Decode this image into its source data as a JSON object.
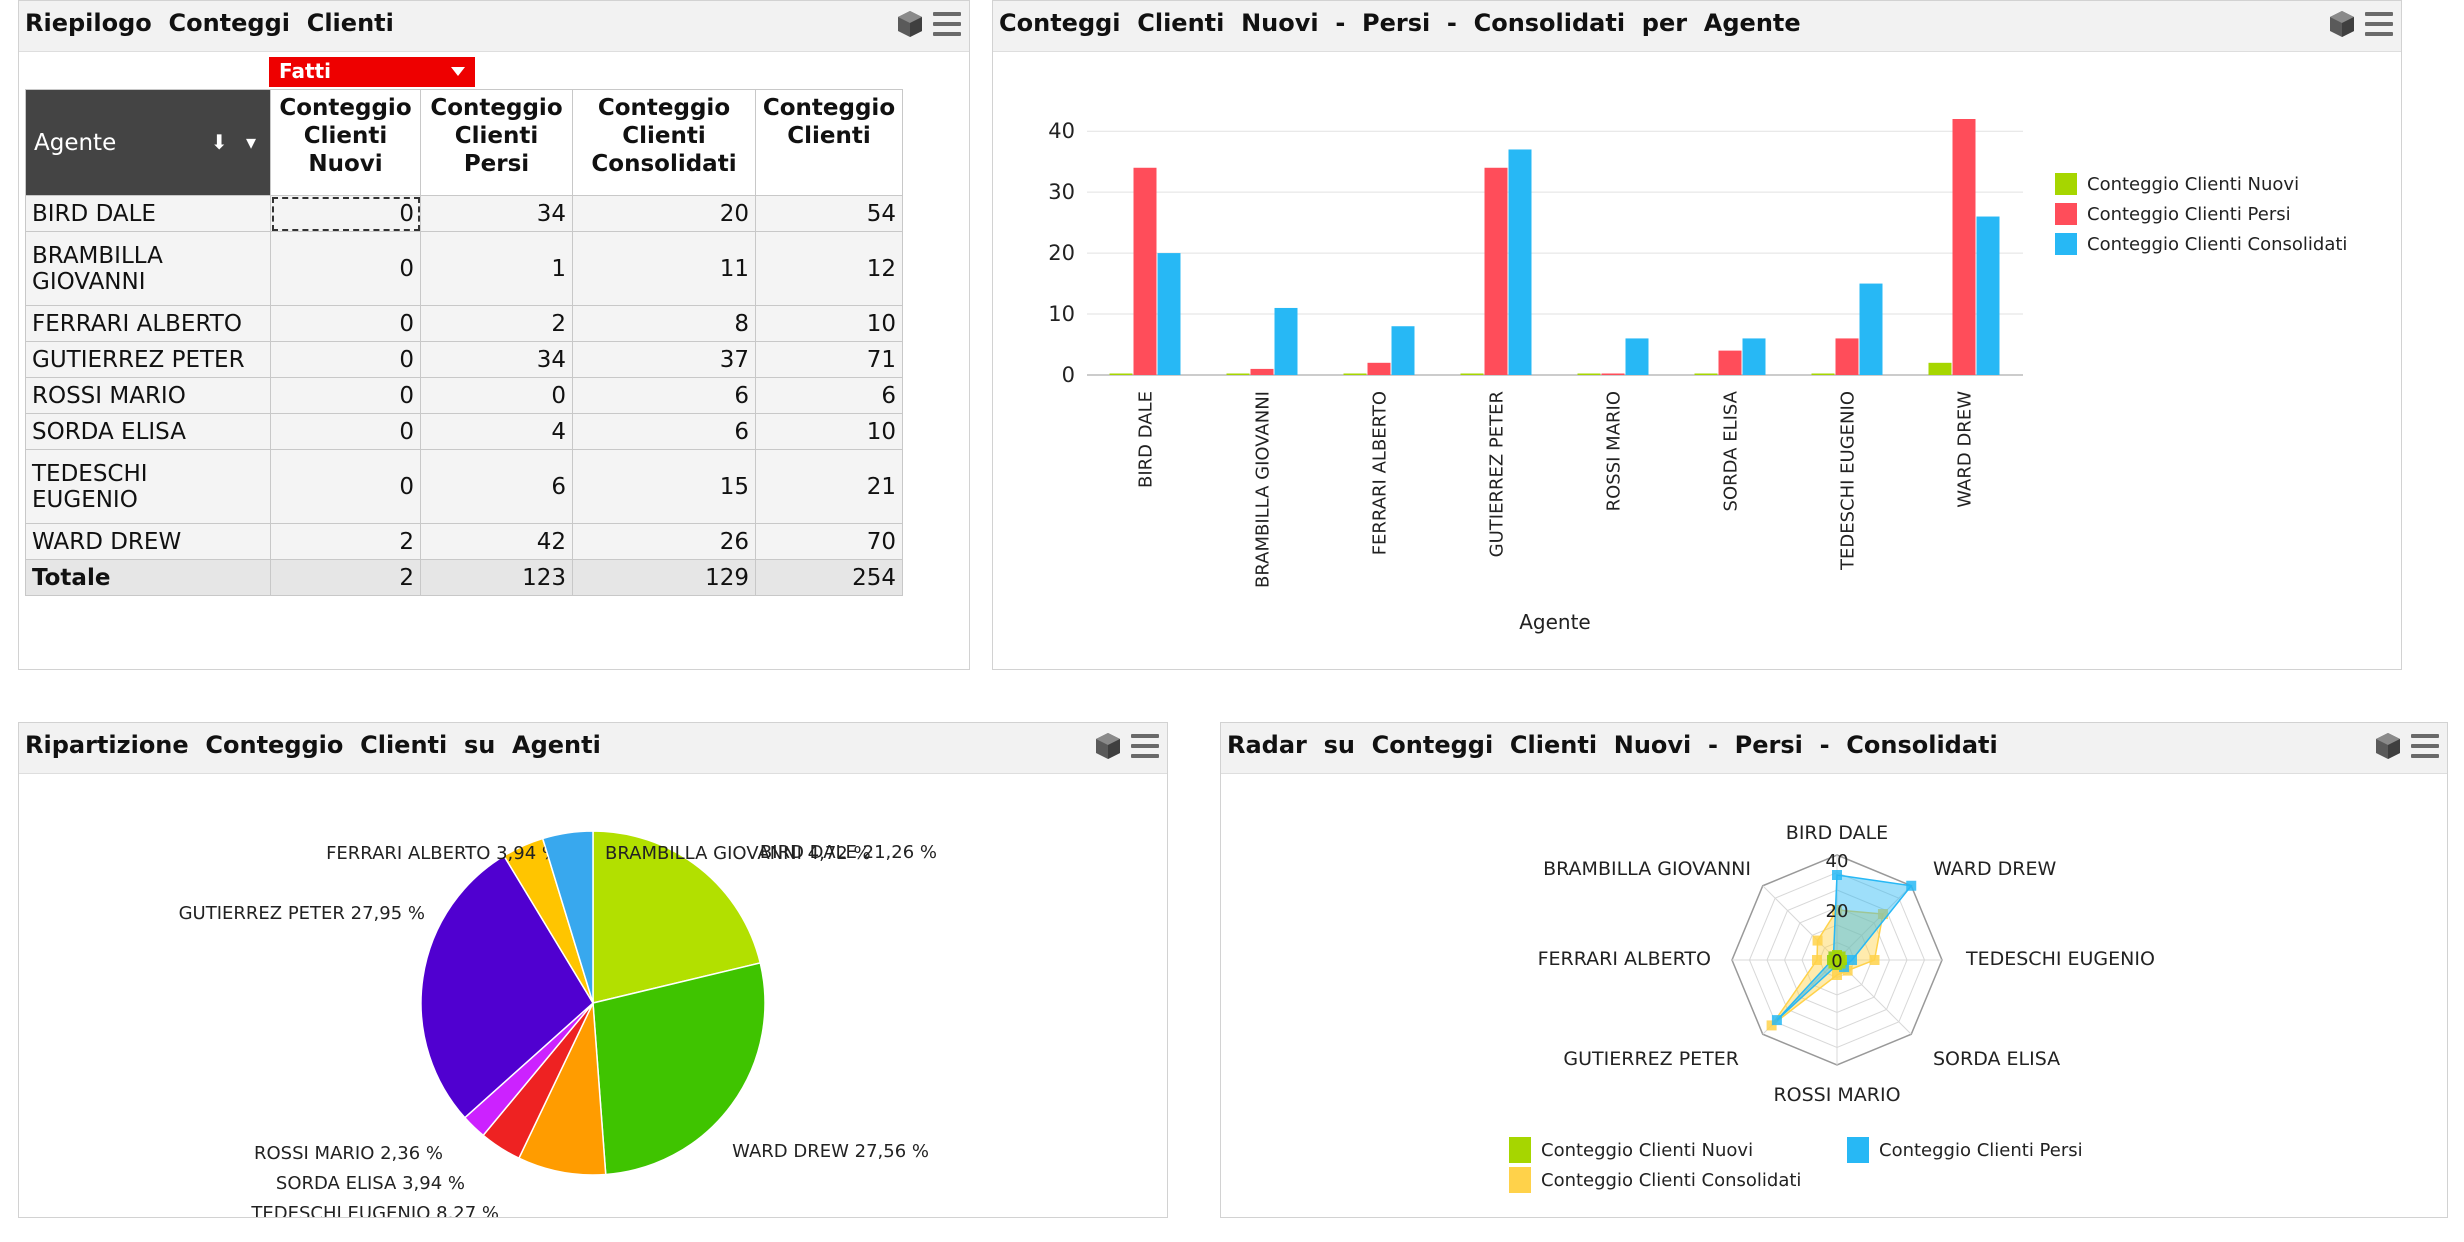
{
  "panels": {
    "summary": {
      "title": "Riepilogo  Conteggi  Clienti"
    },
    "bar": {
      "title": "Conteggi  Clienti  Nuovi  -  Persi  -  Consolidati  per  Agente"
    },
    "pie": {
      "title": "Ripartizione  Conteggio  Clienti  su  Agenti"
    },
    "radar": {
      "title": "Radar  su  Conteggi  Clienti  Nuovi  -  Persi  -  Consolidati"
    }
  },
  "pivot": {
    "filter_label": "Fatti",
    "agent_header": "Agente",
    "sort_icons": "⬇ ▾",
    "columns": [
      [
        "Conteggio",
        "Clienti",
        "Nuovi"
      ],
      [
        "Conteggio",
        "Clienti",
        "Persi"
      ],
      [
        "Conteggio",
        "Clienti",
        "Consolidati"
      ],
      [
        "Conteggio",
        "Clienti",
        ""
      ]
    ],
    "rows": [
      {
        "name": [
          "BIRD DALE",
          ""
        ],
        "values": [
          "0",
          "34",
          "20",
          "54"
        ]
      },
      {
        "name": [
          "BRAMBILLA",
          "GIOVANNI"
        ],
        "values": [
          "0",
          "1",
          "11",
          "12"
        ]
      },
      {
        "name": [
          "FERRARI ALBERTO",
          ""
        ],
        "values": [
          "0",
          "2",
          "8",
          "10"
        ]
      },
      {
        "name": [
          "GUTIERREZ PETER",
          ""
        ],
        "values": [
          "0",
          "34",
          "37",
          "71"
        ]
      },
      {
        "name": [
          "ROSSI MARIO",
          ""
        ],
        "values": [
          "0",
          "0",
          "6",
          "6"
        ]
      },
      {
        "name": [
          "SORDA ELISA",
          ""
        ],
        "values": [
          "0",
          "4",
          "6",
          "10"
        ]
      },
      {
        "name": [
          "TEDESCHI",
          "EUGENIO"
        ],
        "values": [
          "0",
          "6",
          "15",
          "21"
        ]
      },
      {
        "name": [
          "WARD DREW",
          ""
        ],
        "values": [
          "2",
          "42",
          "26",
          "70"
        ]
      }
    ],
    "total": {
      "label": "Totale",
      "values": [
        "2",
        "123",
        "129",
        "254"
      ]
    }
  },
  "colors": {
    "nuovi": "#a6d600",
    "persi": "#ff4d5a",
    "consolidati": "#27b8f5",
    "pie": [
      "#b2e000",
      "#3fc400",
      "#ff9c00",
      "#ee2222",
      "#cc22ff",
      "#5000d0",
      "#ffc500",
      "#38a8ee"
    ]
  },
  "chart_data": [
    {
      "type": "bar",
      "categories": [
        "BIRD DALE",
        "BRAMBILLA GIOVANNI",
        "FERRARI ALBERTO",
        "GUTIERREZ PETER",
        "ROSSI MARIO",
        "SORDA ELISA",
        "TEDESCHI EUGENIO",
        "WARD DREW"
      ],
      "series": [
        {
          "name": "Conteggio Clienti Nuovi",
          "values": [
            0,
            0,
            0,
            0,
            0,
            0,
            0,
            2
          ]
        },
        {
          "name": "Conteggio Clienti Persi",
          "values": [
            34,
            1,
            2,
            34,
            0,
            4,
            6,
            42
          ]
        },
        {
          "name": "Conteggio Clienti Consolidati",
          "values": [
            20,
            11,
            8,
            37,
            6,
            6,
            15,
            26
          ]
        }
      ],
      "xlabel": "Agente",
      "ylabel": "",
      "ylim": [
        0,
        42
      ],
      "yticks": [
        0,
        10,
        20,
        30,
        40
      ],
      "legend": "right"
    },
    {
      "type": "pie",
      "labels": [
        "BIRD DALE",
        "WARD DREW",
        "TEDESCHI EUGENIO",
        "SORDA ELISA",
        "ROSSI MARIO",
        "GUTIERREZ PETER",
        "FERRARI ALBERTO",
        "BRAMBILLA GIOVANNI"
      ],
      "values": [
        54,
        70,
        21,
        10,
        6,
        71,
        10,
        12
      ],
      "percent_labels": [
        "BIRD DALE 21,26 %",
        "WARD DREW 27,56 %",
        "TEDESCHI EUGENIO 8,27 %",
        "SORDA ELISA 3,94 %",
        "ROSSI MARIO 2,36 %",
        "GUTIERREZ PETER 27,95 %",
        "FERRARI ALBERTO 3,94 %",
        "BRAMBILLA GIOVANNI 4,72 %"
      ]
    },
    {
      "type": "radar",
      "axes": [
        "BIRD DALE",
        "WARD DREW",
        "TEDESCHI EUGENIO",
        "SORDA ELISA",
        "ROSSI MARIO",
        "GUTIERREZ PETER",
        "FERRARI ALBERTO",
        "BRAMBILLA GIOVANNI"
      ],
      "series": [
        {
          "name": "Conteggio Clienti Nuovi",
          "values": [
            0,
            2,
            0,
            0,
            0,
            0,
            0,
            0
          ]
        },
        {
          "name": "Conteggio Clienti Persi",
          "values": [
            34,
            42,
            6,
            4,
            0,
            34,
            2,
            1
          ]
        },
        {
          "name": "Conteggio Clienti Consolidati",
          "values": [
            20,
            26,
            15,
            6,
            6,
            37,
            8,
            11
          ]
        }
      ],
      "rlim": [
        0,
        42
      ],
      "rticks": [
        0,
        20,
        40
      ],
      "legend": "bottom"
    }
  ]
}
